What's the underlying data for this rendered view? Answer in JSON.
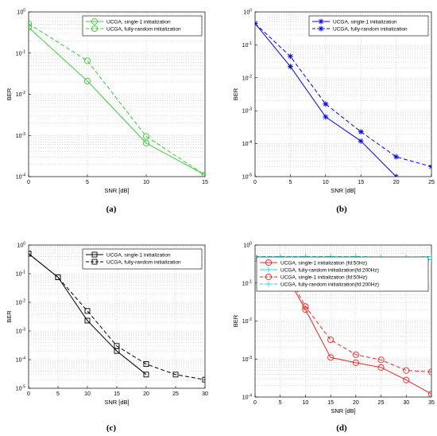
{
  "chart_data": [
    {
      "panel": "(a)",
      "type": "line",
      "xlabel": "SNR [dB]",
      "ylabel": "BER",
      "xlim": [
        0,
        15
      ],
      "xticks": [
        0,
        5,
        10,
        15
      ],
      "ylim": [
        0.0001,
        1
      ],
      "yscale": "log",
      "grid": true,
      "legend_position": "top-right",
      "series": [
        {
          "name": "UCGA, single-1 initialization",
          "color": "#33cc33",
          "style": "solid",
          "marker": "circle",
          "x": [
            0,
            5,
            10,
            15
          ],
          "y": [
            0.42,
            0.021,
            0.00065,
            0.00011
          ]
        },
        {
          "name": "UCGA, fully-random initialization",
          "color": "#33cc33",
          "style": "dashed",
          "marker": "circle",
          "x": [
            0,
            5,
            10,
            15
          ],
          "y": [
            0.52,
            0.065,
            0.00095,
            0.00011
          ]
        }
      ]
    },
    {
      "panel": "(b)",
      "type": "line",
      "xlabel": "SNR [dB]",
      "ylabel": "BER",
      "xlim": [
        0,
        25
      ],
      "xticks": [
        0,
        5,
        10,
        15,
        20,
        25
      ],
      "ylim": [
        1e-05,
        1
      ],
      "yscale": "log",
      "grid": true,
      "legend_position": "top-right",
      "series": [
        {
          "name": "UCGA, single-1 initialization",
          "color": "#0000ee",
          "style": "solid",
          "marker": "star",
          "x": [
            0,
            5,
            10,
            15,
            20
          ],
          "y": [
            0.45,
            0.022,
            0.00065,
            0.00012,
            1e-05
          ]
        },
        {
          "name": "UCGA, fully-random initialization",
          "color": "#0000ee",
          "style": "dashed",
          "marker": "star",
          "x": [
            0,
            5,
            10,
            15,
            20,
            25
          ],
          "y": [
            0.45,
            0.045,
            0.0016,
            0.00023,
            4e-05,
            2e-05
          ]
        }
      ]
    },
    {
      "panel": "(c)",
      "type": "line",
      "xlabel": "SNR [dB]",
      "ylabel": "BER",
      "xlim": [
        0,
        30
      ],
      "xticks": [
        0,
        5,
        10,
        15,
        20,
        25,
        30
      ],
      "ylim": [
        1e-05,
        1
      ],
      "yscale": "log",
      "grid": true,
      "legend_position": "top-right",
      "series": [
        {
          "name": "UCGA, single-1 initialization",
          "color": "#000000",
          "style": "solid",
          "marker": "square",
          "x": [
            0,
            5,
            10,
            15,
            20
          ],
          "y": [
            0.5,
            0.075,
            0.0023,
            0.0002,
            3e-05
          ]
        },
        {
          "name": "UCGA, fully-random initialization",
          "color": "#000000",
          "style": "dashed",
          "marker": "square",
          "x": [
            0,
            5,
            10,
            15,
            20,
            25,
            30
          ],
          "y": [
            0.5,
            0.075,
            0.005,
            0.0003,
            7e-05,
            3e-05,
            2e-05
          ]
        }
      ]
    },
    {
      "panel": "(d)",
      "type": "line",
      "xlabel": "SNR [dB]",
      "ylabel": "BER",
      "xlim": [
        0,
        35
      ],
      "xticks": [
        0,
        5,
        10,
        15,
        20,
        25,
        30,
        35
      ],
      "ylim": [
        0.0001,
        1
      ],
      "yscale": "log",
      "grid": true,
      "legend_position": "top-right",
      "series": [
        {
          "name": "UCGA, single-1 initialization (fd:50Hz)",
          "color": "#ee2222",
          "style": "solid",
          "marker": "circle",
          "x": [
            0,
            5,
            10,
            15,
            20,
            25,
            30,
            35
          ],
          "y": [
            0.45,
            0.3,
            0.02,
            0.0011,
            0.0008,
            0.0006,
            0.00028,
            0.00012
          ]
        },
        {
          "name": "UCGA, fully-random initialization(fd:200Hz)",
          "color": "#22d3e8",
          "style": "solid",
          "marker": "plus",
          "x": [
            0,
            5,
            10,
            15,
            20,
            25,
            30,
            35
          ],
          "y": [
            0.45,
            0.44,
            0.42,
            0.45,
            0.36,
            0.44,
            0.33,
            0.42
          ]
        },
        {
          "name": "UCGA, single-1 initialization (fd:50Hz)",
          "color": "#ee2222",
          "style": "dashed",
          "marker": "circle",
          "x": [
            0,
            5,
            10,
            15,
            20,
            25,
            30,
            35
          ],
          "y": [
            0.45,
            0.38,
            0.024,
            0.0032,
            0.0013,
            0.00095,
            0.0005,
            0.00046
          ]
        },
        {
          "name": "UCGA, fully-random initialization(fd:200Hz)",
          "color": "#22d3e8",
          "style": "dashed",
          "marker": "plus",
          "x": [
            0,
            5,
            10,
            15,
            20,
            25,
            30,
            35
          ],
          "y": [
            0.5,
            0.5,
            0.5,
            0.5,
            0.5,
            0.48,
            0.47,
            0.5
          ]
        }
      ]
    }
  ]
}
